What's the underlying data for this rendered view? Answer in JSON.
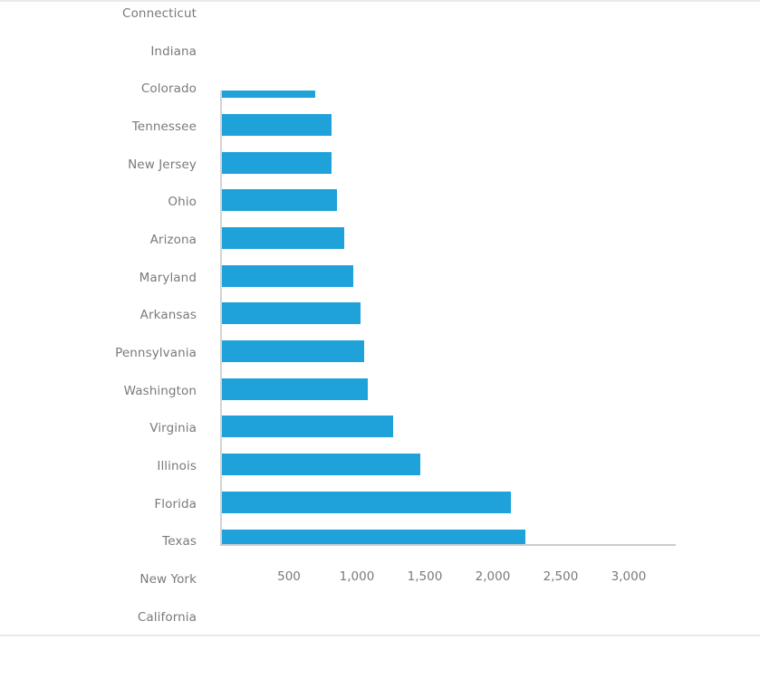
{
  "chart_data": {
    "type": "bar",
    "orientation": "horizontal",
    "title": "",
    "xlabel": "",
    "ylabel": "",
    "categories": [
      "Connecticut",
      "Indiana",
      "Colorado",
      "Tennessee",
      "New Jersey",
      "Ohio",
      "Arizona",
      "Maryland",
      "Arkansas",
      "Pennsylvania",
      "Washington",
      "Virginia",
      "Illinois",
      "Florida",
      "Texas",
      "New York",
      "California"
    ],
    "values": [
      null,
      null,
      695,
      813,
      813,
      853,
      907,
      973,
      1027,
      1053,
      1080,
      1267,
      1467,
      2133,
      2240,
      null,
      null
    ],
    "visible_bar_categories": [
      "Colorado",
      "Tennessee",
      "New Jersey",
      "Ohio",
      "Arizona",
      "Maryland",
      "Arkansas",
      "Pennsylvania",
      "Washington",
      "Virginia",
      "Illinois",
      "Florida",
      "Texas"
    ],
    "xlim": [
      0,
      3350
    ],
    "xticks": [
      500,
      1000,
      1500,
      2000,
      2500,
      3000
    ],
    "xtick_labels": [
      "500",
      "1,000",
      "1,500",
      "2,000",
      "2,500",
      "3,000"
    ],
    "grid": false,
    "legend": null,
    "bar_color": "#1fa2d9",
    "notes": "Plot area is clipped: Connecticut, Indiana, New York and California labels fall outside plot region; Colorado bar partially clipped at top."
  },
  "colors": {
    "bar": "#1fa2d9",
    "label": "#7a7a7a",
    "axis": "#cccccc",
    "border": "#e8e8ee"
  },
  "labels": [
    "Connecticut",
    "Indiana",
    "Colorado",
    "Tennessee",
    "New Jersey",
    "Ohio",
    "Arizona",
    "Maryland",
    "Arkansas",
    "Pennsylvania",
    "Washington",
    "Virginia",
    "Illinois",
    "Florida",
    "Texas",
    "New York",
    "California"
  ],
  "ticks": [
    "500",
    "1,000",
    "1,500",
    "2,000",
    "2,500",
    "3,000"
  ]
}
